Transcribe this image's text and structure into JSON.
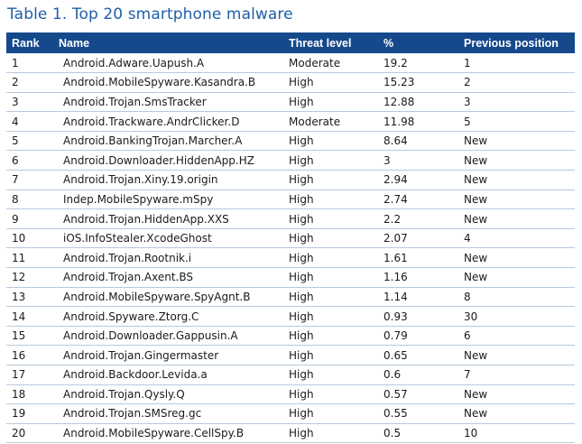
{
  "title": "Table 1. Top 20 smartphone malware",
  "table": {
    "headers": {
      "rank": "Rank",
      "name": "Name",
      "level": "Threat level",
      "pct": "%",
      "prev": "Previous position"
    },
    "rows": [
      {
        "rank": "1",
        "name": "Android.Adware.Uapush.A",
        "level": "Moderate",
        "pct": "19.2",
        "prev": "1"
      },
      {
        "rank": "2",
        "name": "Android.MobileSpyware.Kasandra.B",
        "level": "High",
        "pct": "15.23",
        "prev": "2"
      },
      {
        "rank": "3",
        "name": "Android.Trojan.SmsTracker",
        "level": "High",
        "pct": "12.88",
        "prev": "3"
      },
      {
        "rank": "4",
        "name": "Android.Trackware.AndrClicker.D",
        "level": "Moderate",
        "pct": "11.98",
        "prev": "5"
      },
      {
        "rank": "5",
        "name": "Android.BankingTrojan.Marcher.A",
        "level": "High",
        "pct": "8.64",
        "prev": "New"
      },
      {
        "rank": "6",
        "name": "Android.Downloader.HiddenApp.HZ",
        "level": "High",
        "pct": "3",
        "prev": "New"
      },
      {
        "rank": "7",
        "name": "Android.Trojan.Xiny.19.origin",
        "level": "High",
        "pct": "2.94",
        "prev": "New"
      },
      {
        "rank": "8",
        "name": "Indep.MobileSpyware.mSpy",
        "level": "High",
        "pct": "2.74",
        "prev": "New"
      },
      {
        "rank": "9",
        "name": "Android.Trojan.HiddenApp.XXS",
        "level": "High",
        "pct": "2.2",
        "prev": "New"
      },
      {
        "rank": "10",
        "name": "iOS.InfoStealer.XcodeGhost",
        "level": "High",
        "pct": "2.07",
        "prev": "4"
      },
      {
        "rank": "11",
        "name": "Android.Trojan.Rootnik.i",
        "level": "High",
        "pct": "1.61",
        "prev": "New"
      },
      {
        "rank": "12",
        "name": "Android.Trojan.Axent.BS",
        "level": "High",
        "pct": "1.16",
        "prev": "New"
      },
      {
        "rank": "13",
        "name": "Android.MobileSpyware.SpyAgnt.B",
        "level": "High",
        "pct": "1.14",
        "prev": "8"
      },
      {
        "rank": "14",
        "name": "Android.Spyware.Ztorg.C",
        "level": "High",
        "pct": "0.93",
        "prev": "30"
      },
      {
        "rank": "15",
        "name": "Android.Downloader.Gappusin.A",
        "level": "High",
        "pct": "0.79",
        "prev": "6"
      },
      {
        "rank": "16",
        "name": "Android.Trojan.Gingermaster",
        "level": "High",
        "pct": "0.65",
        "prev": "New"
      },
      {
        "rank": "17",
        "name": "Android.Backdoor.Levida.a",
        "level": "High",
        "pct": "0.6",
        "prev": "7"
      },
      {
        "rank": "18",
        "name": "Android.Trojan.Qysly.Q",
        "level": "High",
        "pct": "0.57",
        "prev": "New"
      },
      {
        "rank": "19",
        "name": "Android.Trojan.SMSreg.gc",
        "level": "High",
        "pct": "0.55",
        "prev": "New"
      },
      {
        "rank": "20",
        "name": "Android.MobileSpyware.CellSpy.B",
        "level": "High",
        "pct": "0.5",
        "prev": "10"
      }
    ]
  },
  "colors": {
    "title": "#1f5fa8",
    "header_bg": "#15498c",
    "header_text": "#ffffff",
    "row_divider": "#b9c9dc"
  }
}
